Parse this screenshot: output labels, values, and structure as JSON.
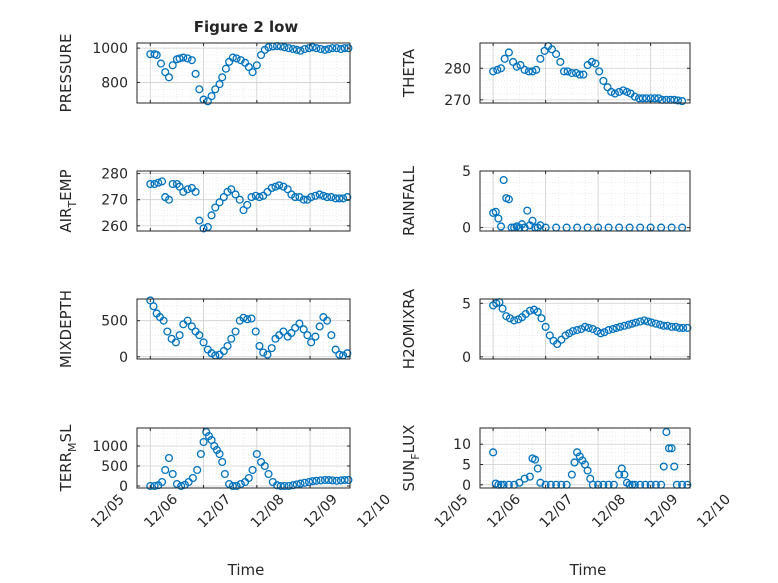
{
  "figure": {
    "title": "Figure 2 low",
    "xlabel": "Time"
  },
  "colors": {
    "marker": "#0072bd",
    "axis": "#262626",
    "grid": "#dfdfdf",
    "background": "#ffffff"
  },
  "chart_data": [
    {
      "type": "scatter",
      "id": "pressure",
      "title": "Figure 2 low",
      "ylabel": "PRESSURE",
      "ylabel_sub": "",
      "xlim": [
        "12/05 18:00",
        "12/09 18:00"
      ],
      "ylim": [
        680,
        1030
      ],
      "yticks": [
        800,
        1000
      ],
      "x_ticks": [
        "12/05",
        "12/06",
        "12/07",
        "12/08",
        "12/09",
        "12/10"
      ],
      "grid": true,
      "minor_grid": true,
      "series": [
        {
          "x": [
            0.0,
            0.08,
            0.12,
            0.2,
            0.28,
            0.35,
            0.42,
            0.5,
            0.55,
            0.62,
            0.7,
            0.78,
            0.85,
            0.92,
            1.0,
            1.08,
            1.15,
            1.22,
            1.3,
            1.35,
            1.42,
            1.48,
            1.55,
            1.62,
            1.7,
            1.78,
            1.85,
            1.92,
            2.0,
            2.08,
            2.15,
            2.22,
            2.3,
            2.38,
            2.45,
            2.52,
            2.6,
            2.68,
            2.75,
            2.82,
            2.9,
            2.98,
            3.05,
            3.12,
            3.2,
            3.28,
            3.35,
            3.42,
            3.5,
            3.58,
            3.65,
            3.72,
            3.8,
            3.88,
            3.95
          ],
          "y": [
            965,
            965,
            960,
            910,
            860,
            830,
            900,
            935,
            940,
            945,
            940,
            930,
            850,
            760,
            700,
            690,
            720,
            760,
            790,
            830,
            880,
            920,
            945,
            940,
            930,
            915,
            890,
            860,
            900,
            960,
            990,
            1005,
            1010,
            1012,
            1010,
            1005,
            1000,
            995,
            990,
            985,
            995,
            1000,
            1005,
            1000,
            995,
            990,
            995,
            1000,
            1000,
            995,
            1000,
            1000,
            1000,
            998,
            1000
          ]
        }
      ]
    },
    {
      "type": "scatter",
      "id": "theta",
      "ylabel": "THETA",
      "ylabel_sub": "",
      "xlim": [
        "12/05 18:00",
        "12/09 18:00"
      ],
      "ylim": [
        269,
        288
      ],
      "yticks": [
        270,
        280
      ],
      "x_ticks": [
        "12/05",
        "12/06",
        "12/07",
        "12/08",
        "12/09",
        "12/10"
      ],
      "grid": true,
      "minor_grid": true,
      "series": [
        {
          "x": [
            0.0,
            0.08,
            0.15,
            0.22,
            0.3,
            0.38,
            0.45,
            0.52,
            0.6,
            0.68,
            0.75,
            0.82,
            0.9,
            0.98,
            1.05,
            1.12,
            1.2,
            1.28,
            1.35,
            1.42,
            1.5,
            1.58,
            1.65,
            1.72,
            1.8,
            1.88,
            1.95,
            2.02,
            2.1,
            2.18,
            2.25,
            2.32,
            2.4,
            2.48,
            2.55,
            2.62,
            2.7,
            2.78,
            2.85,
            2.92,
            3.0,
            3.08,
            3.15,
            3.22,
            3.3,
            3.38,
            3.45,
            3.52,
            3.6
          ],
          "y": [
            279,
            279.5,
            280,
            283,
            285,
            282,
            280.5,
            281,
            279.5,
            279,
            279,
            279.5,
            283,
            285.5,
            287,
            286,
            284.5,
            282,
            279,
            279,
            278.5,
            278.5,
            278,
            278,
            281,
            282,
            281.5,
            279,
            276,
            274,
            272.5,
            272,
            272.5,
            273,
            272.5,
            272,
            271,
            270.5,
            270.5,
            270.5,
            270.5,
            270.5,
            270.5,
            270,
            270,
            270,
            270,
            269.8,
            269.6
          ]
        }
      ]
    },
    {
      "type": "scatter",
      "id": "air_temp",
      "ylabel": "AIR",
      "ylabel_sub": "T",
      "ylabel_rest": "EMP",
      "xlim": [
        "12/05 18:00",
        "12/09 18:00"
      ],
      "ylim": [
        258,
        281
      ],
      "yticks": [
        260,
        270,
        280
      ],
      "x_ticks": [
        "12/05",
        "12/06",
        "12/07",
        "12/08",
        "12/09",
        "12/10"
      ],
      "grid": true,
      "minor_grid": true,
      "series": [
        {
          "x": [
            0.0,
            0.08,
            0.15,
            0.22,
            0.28,
            0.35,
            0.42,
            0.5,
            0.55,
            0.62,
            0.7,
            0.78,
            0.85,
            0.92,
            1.0,
            1.08,
            1.15,
            1.22,
            1.3,
            1.38,
            1.45,
            1.52,
            1.6,
            1.68,
            1.75,
            1.82,
            1.9,
            1.98,
            2.05,
            2.12,
            2.2,
            2.28,
            2.35,
            2.42,
            2.5,
            2.58,
            2.65,
            2.72,
            2.8,
            2.88,
            2.95,
            3.02,
            3.1,
            3.18,
            3.25,
            3.32,
            3.4,
            3.48,
            3.55,
            3.62,
            3.7,
            3.78,
            3.85,
            3.92
          ],
          "y": [
            276,
            276,
            276.5,
            277,
            271,
            270,
            276,
            276,
            275,
            273,
            274,
            274.5,
            273,
            262,
            259,
            259.5,
            264,
            267,
            269,
            271,
            273,
            274,
            272,
            270,
            266,
            268,
            271,
            271.5,
            271,
            271.5,
            273,
            274.5,
            275,
            275.5,
            275,
            274,
            272,
            271,
            271,
            270,
            270,
            271,
            271.5,
            272,
            271.5,
            271,
            271,
            270.5,
            270.5,
            270.5,
            271,
            271,
            270.5,
            270
          ]
        }
      ]
    },
    {
      "type": "scatter",
      "id": "rainfall",
      "ylabel": "RAINFALL",
      "ylabel_sub": "",
      "xlim": [
        "12/05 18:00",
        "12/09 18:00"
      ],
      "ylim": [
        -0.3,
        5
      ],
      "yticks": [
        0,
        5
      ],
      "x_ticks": [
        "12/05",
        "12/06",
        "12/07",
        "12/08",
        "12/09",
        "12/10"
      ],
      "grid": true,
      "minor_grid": true,
      "series": [
        {
          "x": [
            0.0,
            0.05,
            0.1,
            0.15,
            0.2,
            0.25,
            0.3,
            0.35,
            0.4,
            0.45,
            0.5,
            0.55,
            0.6,
            0.65,
            0.7,
            0.75,
            0.8,
            0.85,
            0.9,
            1.0,
            1.2,
            1.4,
            1.6,
            1.8,
            2.0,
            2.2,
            2.4,
            2.6,
            2.8,
            3.0,
            3.2,
            3.4,
            3.6,
            3.8,
            3.95
          ],
          "y": [
            1.3,
            1.4,
            0.8,
            0.1,
            4.2,
            2.6,
            2.5,
            0,
            0,
            0.1,
            0,
            0.3,
            0,
            1.5,
            0.2,
            0.6,
            0,
            0,
            0.2,
            0,
            0,
            0,
            0,
            0,
            0,
            0,
            0,
            0,
            0,
            0,
            0,
            0,
            0,
            0,
            0
          ]
        }
      ]
    },
    {
      "type": "scatter",
      "id": "mixdepth",
      "ylabel": "MIXDEPTH",
      "ylabel_sub": "",
      "xlim": [
        "12/05 18:00",
        "12/09 18:00"
      ],
      "ylim": [
        -30,
        800
      ],
      "yticks": [
        0,
        500
      ],
      "x_ticks": [
        "12/05",
        "12/06",
        "12/07",
        "12/08",
        "12/09",
        "12/10"
      ],
      "grid": true,
      "minor_grid": true,
      "series": [
        {
          "x": [
            0.0,
            0.06,
            0.12,
            0.18,
            0.25,
            0.32,
            0.4,
            0.48,
            0.55,
            0.62,
            0.7,
            0.78,
            0.85,
            0.92,
            1.0,
            1.08,
            1.15,
            1.22,
            1.3,
            1.38,
            1.45,
            1.52,
            1.6,
            1.68,
            1.75,
            1.82,
            1.9,
            1.98,
            2.05,
            2.12,
            2.2,
            2.28,
            2.35,
            2.42,
            2.5,
            2.58,
            2.65,
            2.72,
            2.8,
            2.88,
            2.95,
            3.02,
            3.1,
            3.18,
            3.25,
            3.32,
            3.4,
            3.48,
            3.55,
            3.62,
            3.7,
            3.78,
            3.85,
            3.92
          ],
          "y": [
            780,
            700,
            600,
            550,
            500,
            350,
            250,
            200,
            300,
            450,
            500,
            420,
            350,
            300,
            200,
            100,
            50,
            20,
            30,
            80,
            150,
            250,
            350,
            500,
            540,
            520,
            530,
            350,
            150,
            60,
            30,
            120,
            250,
            300,
            350,
            280,
            330,
            400,
            460,
            380,
            300,
            200,
            280,
            420,
            550,
            500,
            300,
            100,
            30,
            20,
            50,
            100,
            140,
            150
          ]
        }
      ]
    },
    {
      "type": "scatter",
      "id": "h2omixra",
      "ylabel": "H2OMIXRA",
      "ylabel_sub": "",
      "xlim": [
        "12/05 18:00",
        "12/09 18:00"
      ],
      "ylim": [
        -0.2,
        5.4
      ],
      "yticks": [
        0,
        5
      ],
      "x_ticks": [
        "12/05",
        "12/06",
        "12/07",
        "12/08",
        "12/09",
        "12/10"
      ],
      "grid": true,
      "minor_grid": true,
      "series": [
        {
          "x": [
            0.0,
            0.06,
            0.12,
            0.18,
            0.25,
            0.32,
            0.4,
            0.48,
            0.55,
            0.62,
            0.7,
            0.78,
            0.85,
            0.92,
            1.0,
            1.08,
            1.15,
            1.22,
            1.3,
            1.38,
            1.45,
            1.52,
            1.6,
            1.68,
            1.75,
            1.82,
            1.9,
            1.98,
            2.05,
            2.12,
            2.2,
            2.28,
            2.35,
            2.42,
            2.5,
            2.58,
            2.65,
            2.72,
            2.8,
            2.88,
            2.95,
            3.02,
            3.1,
            3.18,
            3.25,
            3.32,
            3.4,
            3.48,
            3.55,
            3.62,
            3.7,
            3.78,
            3.85,
            3.92
          ],
          "y": [
            4.8,
            5.0,
            5.1,
            4.5,
            3.8,
            3.6,
            3.4,
            3.5,
            3.7,
            4.0,
            4.3,
            4.4,
            4.2,
            3.6,
            2.8,
            2.0,
            1.5,
            1.2,
            1.6,
            2.0,
            2.2,
            2.4,
            2.5,
            2.6,
            2.8,
            2.7,
            2.6,
            2.4,
            2.2,
            2.3,
            2.5,
            2.6,
            2.7,
            2.8,
            2.9,
            3.0,
            3.1,
            3.2,
            3.3,
            3.4,
            3.3,
            3.2,
            3.1,
            3.0,
            2.9,
            2.9,
            2.8,
            2.8,
            2.7,
            2.7,
            2.7,
            2.6,
            2.6,
            2.6
          ]
        }
      ]
    },
    {
      "type": "scatter",
      "id": "terr_msl",
      "ylabel": "TERR",
      "ylabel_sub": "M",
      "ylabel_rest": "SL",
      "xlim": [
        "12/05 18:00",
        "12/09 18:00"
      ],
      "ylim": [
        -50,
        1450
      ],
      "yticks": [
        0,
        500,
        1000
      ],
      "x_ticks": [
        "12/05",
        "12/06",
        "12/07",
        "12/08",
        "12/09",
        "12/10"
      ],
      "grid": true,
      "minor_grid": true,
      "series": [
        {
          "x": [
            0.0,
            0.08,
            0.15,
            0.22,
            0.28,
            0.35,
            0.42,
            0.5,
            0.58,
            0.65,
            0.72,
            0.8,
            0.88,
            0.95,
            1.0,
            1.05,
            1.1,
            1.15,
            1.2,
            1.25,
            1.3,
            1.35,
            1.4,
            1.48,
            1.55,
            1.62,
            1.7,
            1.78,
            1.85,
            1.92,
            2.0,
            2.08,
            2.15,
            2.22,
            2.3,
            2.38,
            2.45,
            2.52,
            2.6,
            2.68,
            2.75,
            2.82,
            2.9,
            2.98,
            3.05,
            3.12,
            3.2,
            3.28,
            3.35,
            3.42,
            3.5,
            3.58,
            3.65,
            3.72,
            3.8,
            3.88,
            3.95
          ],
          "y": [
            0,
            0,
            20,
            100,
            400,
            700,
            300,
            50,
            0,
            30,
            100,
            200,
            400,
            800,
            1100,
            1350,
            1250,
            1150,
            1000,
            900,
            800,
            600,
            300,
            50,
            0,
            0,
            50,
            100,
            200,
            400,
            800,
            600,
            500,
            300,
            100,
            20,
            0,
            0,
            0,
            20,
            40,
            60,
            80,
            100,
            120,
            130,
            140,
            150,
            150,
            140,
            130,
            140,
            150,
            150,
            140,
            150,
            150
          ]
        }
      ]
    },
    {
      "type": "scatter",
      "id": "sun_flux",
      "ylabel": "SUN",
      "ylabel_sub": "F",
      "ylabel_rest": "LUX",
      "xlim": [
        "12/05 18:00",
        "12/09 18:00"
      ],
      "ylim": [
        -0.8,
        14
      ],
      "yticks": [
        0,
        5,
        10
      ],
      "x_ticks": [
        "12/05",
        "12/06",
        "12/07",
        "12/08",
        "12/09",
        "12/10"
      ],
      "grid": true,
      "minor_grid": true,
      "series": [
        {
          "x": [
            0.0,
            0.05,
            0.1,
            0.15,
            0.2,
            0.3,
            0.4,
            0.5,
            0.6,
            0.7,
            0.75,
            0.8,
            0.85,
            0.9,
            1.0,
            1.1,
            1.2,
            1.3,
            1.4,
            1.5,
            1.55,
            1.6,
            1.65,
            1.7,
            1.75,
            1.8,
            1.85,
            1.9,
            2.0,
            2.1,
            2.2,
            2.3,
            2.4,
            2.45,
            2.5,
            2.55,
            2.6,
            2.65,
            2.7,
            2.8,
            2.9,
            3.0,
            3.1,
            3.2,
            3.25,
            3.3,
            3.35,
            3.4,
            3.45,
            3.5,
            3.6,
            3.7,
            3.8,
            3.9,
            3.95
          ],
          "y": [
            8,
            0.3,
            0,
            0,
            0,
            0,
            0,
            0.5,
            1.5,
            2.0,
            6.5,
            6.2,
            4.0,
            0.5,
            0,
            0,
            0,
            0,
            0,
            2.5,
            5.5,
            8.0,
            7.0,
            6.0,
            5.0,
            3.5,
            1.5,
            0,
            0,
            0,
            0,
            0,
            2.5,
            4.0,
            2.5,
            0.5,
            0,
            0,
            0,
            0,
            0,
            0,
            0,
            0,
            4.5,
            13.0,
            9.0,
            9.0,
            4.5,
            0,
            0,
            0,
            0,
            0,
            0
          ]
        }
      ]
    }
  ]
}
